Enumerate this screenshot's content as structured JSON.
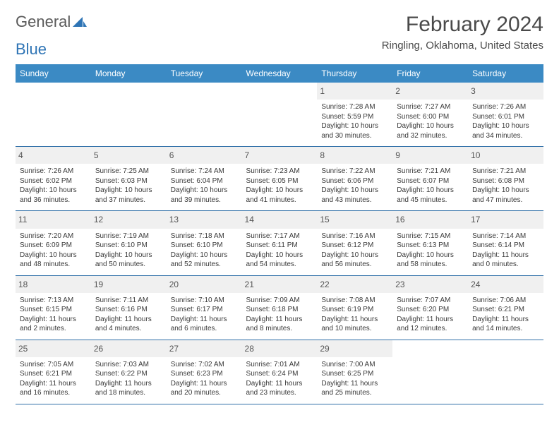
{
  "brand": {
    "name_a": "General",
    "name_b": "Blue"
  },
  "header": {
    "title": "February 2024",
    "location": "Ringling, Oklahoma, United States"
  },
  "colors": {
    "header_bg": "#3b8ac4",
    "header_text": "#ffffff",
    "row_border": "#2f6fa8",
    "daynum_bg": "#f0f0f0",
    "body_text": "#3a3a3a",
    "brand_gray": "#5a5a5a",
    "brand_blue": "#2e74b5"
  },
  "dow": [
    "Sunday",
    "Monday",
    "Tuesday",
    "Wednesday",
    "Thursday",
    "Friday",
    "Saturday"
  ],
  "weeks": [
    [
      null,
      null,
      null,
      null,
      {
        "n": "1",
        "sunrise": "7:28 AM",
        "sunset": "5:59 PM",
        "dl1": "Daylight: 10 hours",
        "dl2": "and 30 minutes."
      },
      {
        "n": "2",
        "sunrise": "7:27 AM",
        "sunset": "6:00 PM",
        "dl1": "Daylight: 10 hours",
        "dl2": "and 32 minutes."
      },
      {
        "n": "3",
        "sunrise": "7:26 AM",
        "sunset": "6:01 PM",
        "dl1": "Daylight: 10 hours",
        "dl2": "and 34 minutes."
      }
    ],
    [
      {
        "n": "4",
        "sunrise": "7:26 AM",
        "sunset": "6:02 PM",
        "dl1": "Daylight: 10 hours",
        "dl2": "and 36 minutes."
      },
      {
        "n": "5",
        "sunrise": "7:25 AM",
        "sunset": "6:03 PM",
        "dl1": "Daylight: 10 hours",
        "dl2": "and 37 minutes."
      },
      {
        "n": "6",
        "sunrise": "7:24 AM",
        "sunset": "6:04 PM",
        "dl1": "Daylight: 10 hours",
        "dl2": "and 39 minutes."
      },
      {
        "n": "7",
        "sunrise": "7:23 AM",
        "sunset": "6:05 PM",
        "dl1": "Daylight: 10 hours",
        "dl2": "and 41 minutes."
      },
      {
        "n": "8",
        "sunrise": "7:22 AM",
        "sunset": "6:06 PM",
        "dl1": "Daylight: 10 hours",
        "dl2": "and 43 minutes."
      },
      {
        "n": "9",
        "sunrise": "7:21 AM",
        "sunset": "6:07 PM",
        "dl1": "Daylight: 10 hours",
        "dl2": "and 45 minutes."
      },
      {
        "n": "10",
        "sunrise": "7:21 AM",
        "sunset": "6:08 PM",
        "dl1": "Daylight: 10 hours",
        "dl2": "and 47 minutes."
      }
    ],
    [
      {
        "n": "11",
        "sunrise": "7:20 AM",
        "sunset": "6:09 PM",
        "dl1": "Daylight: 10 hours",
        "dl2": "and 48 minutes."
      },
      {
        "n": "12",
        "sunrise": "7:19 AM",
        "sunset": "6:10 PM",
        "dl1": "Daylight: 10 hours",
        "dl2": "and 50 minutes."
      },
      {
        "n": "13",
        "sunrise": "7:18 AM",
        "sunset": "6:10 PM",
        "dl1": "Daylight: 10 hours",
        "dl2": "and 52 minutes."
      },
      {
        "n": "14",
        "sunrise": "7:17 AM",
        "sunset": "6:11 PM",
        "dl1": "Daylight: 10 hours",
        "dl2": "and 54 minutes."
      },
      {
        "n": "15",
        "sunrise": "7:16 AM",
        "sunset": "6:12 PM",
        "dl1": "Daylight: 10 hours",
        "dl2": "and 56 minutes."
      },
      {
        "n": "16",
        "sunrise": "7:15 AM",
        "sunset": "6:13 PM",
        "dl1": "Daylight: 10 hours",
        "dl2": "and 58 minutes."
      },
      {
        "n": "17",
        "sunrise": "7:14 AM",
        "sunset": "6:14 PM",
        "dl1": "Daylight: 11 hours",
        "dl2": "and 0 minutes."
      }
    ],
    [
      {
        "n": "18",
        "sunrise": "7:13 AM",
        "sunset": "6:15 PM",
        "dl1": "Daylight: 11 hours",
        "dl2": "and 2 minutes."
      },
      {
        "n": "19",
        "sunrise": "7:11 AM",
        "sunset": "6:16 PM",
        "dl1": "Daylight: 11 hours",
        "dl2": "and 4 minutes."
      },
      {
        "n": "20",
        "sunrise": "7:10 AM",
        "sunset": "6:17 PM",
        "dl1": "Daylight: 11 hours",
        "dl2": "and 6 minutes."
      },
      {
        "n": "21",
        "sunrise": "7:09 AM",
        "sunset": "6:18 PM",
        "dl1": "Daylight: 11 hours",
        "dl2": "and 8 minutes."
      },
      {
        "n": "22",
        "sunrise": "7:08 AM",
        "sunset": "6:19 PM",
        "dl1": "Daylight: 11 hours",
        "dl2": "and 10 minutes."
      },
      {
        "n": "23",
        "sunrise": "7:07 AM",
        "sunset": "6:20 PM",
        "dl1": "Daylight: 11 hours",
        "dl2": "and 12 minutes."
      },
      {
        "n": "24",
        "sunrise": "7:06 AM",
        "sunset": "6:21 PM",
        "dl1": "Daylight: 11 hours",
        "dl2": "and 14 minutes."
      }
    ],
    [
      {
        "n": "25",
        "sunrise": "7:05 AM",
        "sunset": "6:21 PM",
        "dl1": "Daylight: 11 hours",
        "dl2": "and 16 minutes."
      },
      {
        "n": "26",
        "sunrise": "7:03 AM",
        "sunset": "6:22 PM",
        "dl1": "Daylight: 11 hours",
        "dl2": "and 18 minutes."
      },
      {
        "n": "27",
        "sunrise": "7:02 AM",
        "sunset": "6:23 PM",
        "dl1": "Daylight: 11 hours",
        "dl2": "and 20 minutes."
      },
      {
        "n": "28",
        "sunrise": "7:01 AM",
        "sunset": "6:24 PM",
        "dl1": "Daylight: 11 hours",
        "dl2": "and 23 minutes."
      },
      {
        "n": "29",
        "sunrise": "7:00 AM",
        "sunset": "6:25 PM",
        "dl1": "Daylight: 11 hours",
        "dl2": "and 25 minutes."
      },
      null,
      null
    ]
  ],
  "labels": {
    "sunrise_prefix": "Sunrise: ",
    "sunset_prefix": "Sunset: "
  }
}
